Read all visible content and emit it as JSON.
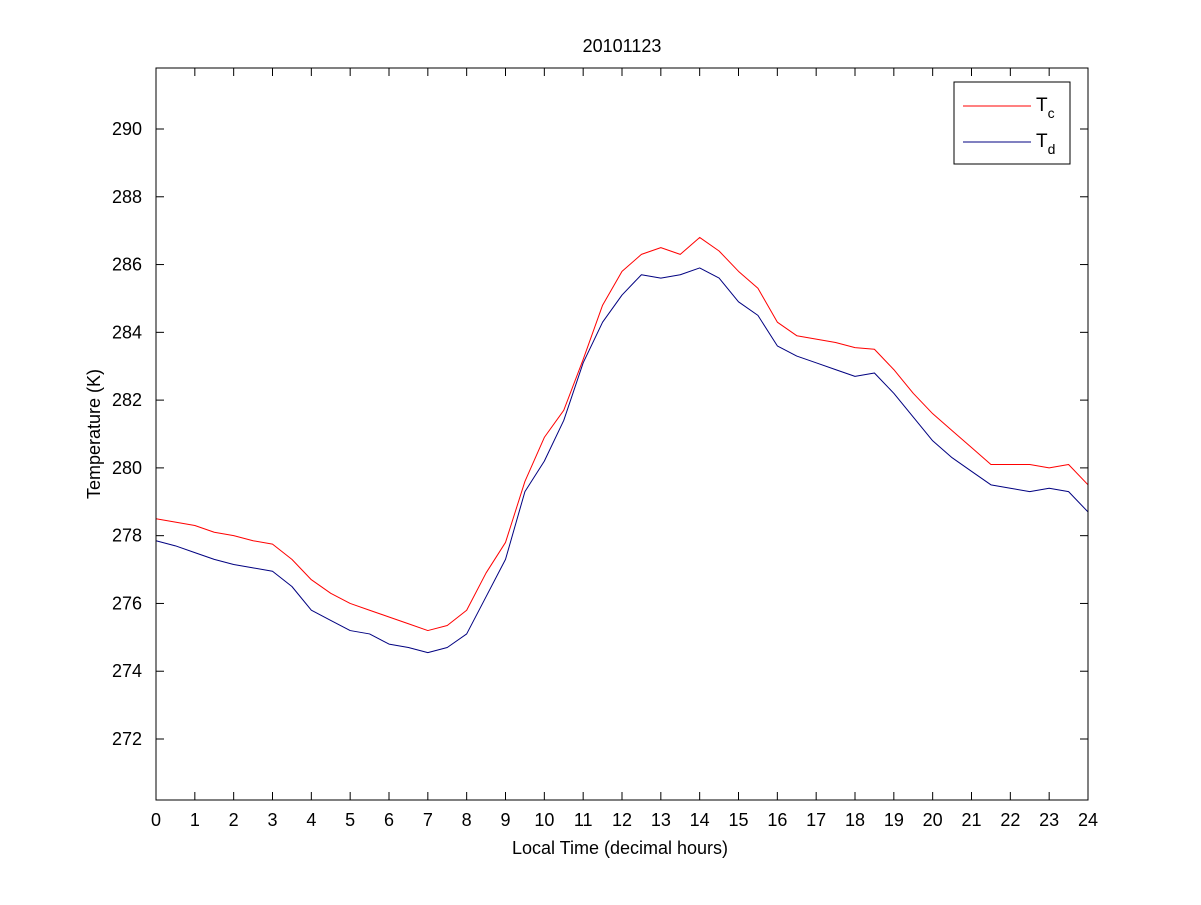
{
  "chart_data": {
    "type": "line",
    "title": "20101123",
    "xlabel": "Local Time (decimal hours)",
    "ylabel": "Temperature (K)",
    "xlim": [
      0,
      24
    ],
    "ylim": [
      270.2,
      291.8
    ],
    "xticks": [
      0,
      1,
      2,
      3,
      4,
      5,
      6,
      7,
      8,
      9,
      10,
      11,
      12,
      13,
      14,
      15,
      16,
      17,
      18,
      19,
      20,
      21,
      22,
      23,
      24
    ],
    "yticks": [
      272,
      274,
      276,
      278,
      280,
      282,
      284,
      286,
      288,
      290
    ],
    "grid": false,
    "legend_position": "top-right",
    "series": [
      {
        "name": "T",
        "name_subscript": "c",
        "color": "#ff0000",
        "x": [
          0,
          0.5,
          1,
          1.5,
          2,
          2.5,
          3,
          3.5,
          4,
          4.5,
          5,
          5.5,
          6,
          6.5,
          7,
          7.5,
          8,
          8.5,
          9,
          9.5,
          10,
          10.5,
          11,
          11.5,
          12,
          12.5,
          13,
          13.5,
          14,
          14.5,
          15,
          15.5,
          16,
          16.5,
          17,
          17.5,
          18,
          18.5,
          19,
          19.5,
          20,
          20.5,
          21,
          21.5,
          22,
          22.5,
          23,
          23.5,
          24
        ],
        "y": [
          278.5,
          278.4,
          278.3,
          278.1,
          278.0,
          277.85,
          277.75,
          277.3,
          276.7,
          276.3,
          276.0,
          275.8,
          275.6,
          275.4,
          275.2,
          275.35,
          275.8,
          276.9,
          277.8,
          279.6,
          280.9,
          281.7,
          283.2,
          284.8,
          285.8,
          286.3,
          286.5,
          286.3,
          286.8,
          286.4,
          285.8,
          285.3,
          284.3,
          283.9,
          283.8,
          283.7,
          283.55,
          283.5,
          282.9,
          282.2,
          281.6,
          281.1,
          280.6,
          280.1,
          280.1,
          280.1,
          280.0,
          280.1,
          279.5
        ]
      },
      {
        "name": "T",
        "name_subscript": "d",
        "color": "#000080",
        "x": [
          0,
          0.5,
          1,
          1.5,
          2,
          2.5,
          3,
          3.5,
          4,
          4.5,
          5,
          5.5,
          6,
          6.5,
          7,
          7.5,
          8,
          8.5,
          9,
          9.5,
          10,
          10.5,
          11,
          11.5,
          12,
          12.5,
          13,
          13.5,
          14,
          14.5,
          15,
          15.5,
          16,
          16.5,
          17,
          17.5,
          18,
          18.5,
          19,
          19.5,
          20,
          20.5,
          21,
          21.5,
          22,
          22.5,
          23,
          23.5,
          24
        ],
        "y": [
          277.85,
          277.7,
          277.5,
          277.3,
          277.15,
          277.05,
          276.95,
          276.5,
          275.8,
          275.5,
          275.2,
          275.1,
          274.8,
          274.7,
          274.55,
          274.7,
          275.1,
          276.2,
          277.3,
          279.3,
          280.2,
          281.4,
          283.1,
          284.3,
          285.1,
          285.7,
          285.6,
          285.7,
          285.9,
          285.6,
          284.9,
          284.5,
          283.6,
          283.3,
          283.1,
          282.9,
          282.7,
          282.8,
          282.2,
          281.5,
          280.8,
          280.3,
          279.9,
          279.5,
          279.4,
          279.3,
          279.4,
          279.3,
          278.7
        ]
      }
    ]
  }
}
